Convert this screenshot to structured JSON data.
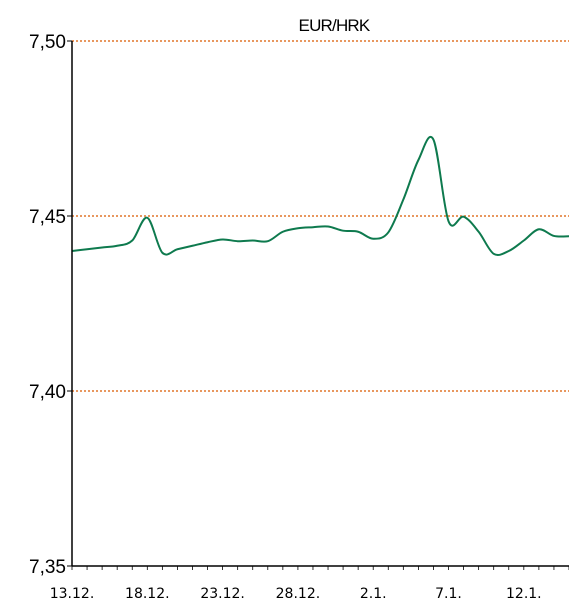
{
  "chart_data": {
    "type": "line",
    "title": "EUR/HRK",
    "xlabel": "",
    "ylabel": "",
    "ylim": [
      7.35,
      7.5
    ],
    "yticks": [
      "7,35",
      "7,40",
      "7,45",
      "7,50"
    ],
    "ytick_values": [
      7.35,
      7.4,
      7.45,
      7.5
    ],
    "xticks": [
      "13.12.",
      "18.12.",
      "23.12.",
      "28.12.",
      "2.1.",
      "7.1.",
      "12.1."
    ],
    "grid": "horizontal dotted",
    "colors": {
      "line": "#0e7a4e",
      "grid": "#e0752a",
      "axis": "#000000"
    },
    "series": [
      {
        "x": [
          "13.12.",
          "14.12.",
          "15.12.",
          "16.12.",
          "17.12.",
          "18.12.",
          "19.12.",
          "20.12.",
          "21.12.",
          "22.12.",
          "23.12.",
          "24.12.",
          "25.12.",
          "26.12.",
          "27.12.",
          "28.12.",
          "29.12.",
          "30.12.",
          "31.12.",
          "1.1.",
          "2.1.",
          "3.1.",
          "4.1.",
          "5.1.",
          "6.1.",
          "7.1.",
          "8.1.",
          "9.1.",
          "10.1.",
          "11.1.",
          "12.1.",
          "13.1.",
          "14.1.",
          "15.1."
        ],
        "values": [
          7.44,
          7.4405,
          7.441,
          7.4415,
          7.443,
          7.4495,
          7.4395,
          7.4405,
          7.4415,
          7.4425,
          7.4433,
          7.4428,
          7.443,
          7.4428,
          7.4455,
          7.4465,
          7.4468,
          7.447,
          7.4458,
          7.4455,
          7.4435,
          7.4453,
          7.4547,
          7.466,
          7.4718,
          7.4485,
          7.4498,
          7.4455,
          7.4392,
          7.44,
          7.443,
          7.4462,
          7.4443,
          7.4442
        ]
      }
    ]
  }
}
